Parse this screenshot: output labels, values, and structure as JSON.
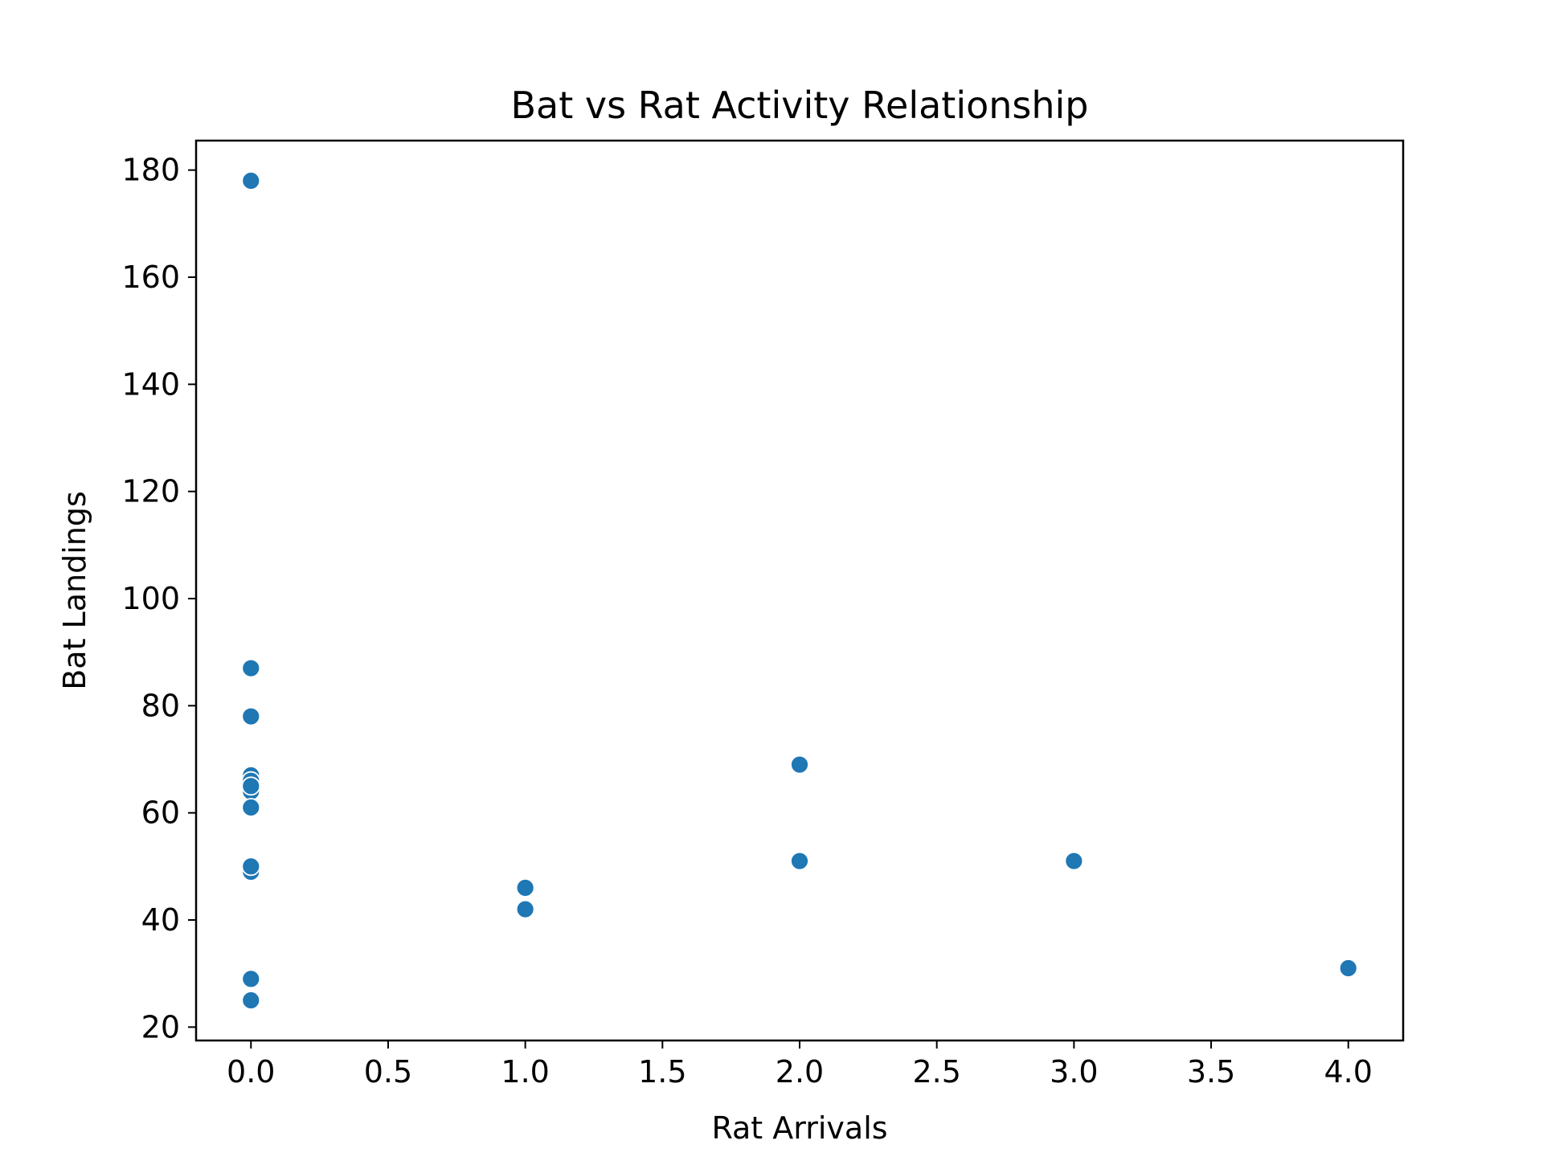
{
  "chart_data": {
    "type": "scatter",
    "title": "Bat vs Rat Activity Relationship",
    "xlabel": "Rat Arrivals",
    "ylabel": "Bat Landings",
    "xlim": [
      -0.2,
      4.2
    ],
    "ylim": [
      17.5,
      185.5
    ],
    "xticks": [
      0.0,
      0.5,
      1.0,
      1.5,
      2.0,
      2.5,
      3.0,
      3.5,
      4.0
    ],
    "xtick_labels": [
      "0.0",
      "0.5",
      "1.0",
      "1.5",
      "2.0",
      "2.5",
      "3.0",
      "3.5",
      "4.0"
    ],
    "yticks": [
      20,
      40,
      60,
      80,
      100,
      120,
      140,
      160,
      180
    ],
    "ytick_labels": [
      "20",
      "40",
      "60",
      "80",
      "100",
      "120",
      "140",
      "160",
      "180"
    ],
    "grid": false,
    "legend": "none",
    "point_color": "#1f77b4",
    "points": [
      {
        "x": 0,
        "y": 178
      },
      {
        "x": 0,
        "y": 87
      },
      {
        "x": 0,
        "y": 78
      },
      {
        "x": 0,
        "y": 67
      },
      {
        "x": 0,
        "y": 66
      },
      {
        "x": 0,
        "y": 64
      },
      {
        "x": 0,
        "y": 65
      },
      {
        "x": 0,
        "y": 61
      },
      {
        "x": 0,
        "y": 49
      },
      {
        "x": 0,
        "y": 50
      },
      {
        "x": 0,
        "y": 29
      },
      {
        "x": 0,
        "y": 25
      },
      {
        "x": 1,
        "y": 46
      },
      {
        "x": 1,
        "y": 42
      },
      {
        "x": 2,
        "y": 69
      },
      {
        "x": 2,
        "y": 51
      },
      {
        "x": 3,
        "y": 51
      },
      {
        "x": 4,
        "y": 31
      }
    ]
  }
}
